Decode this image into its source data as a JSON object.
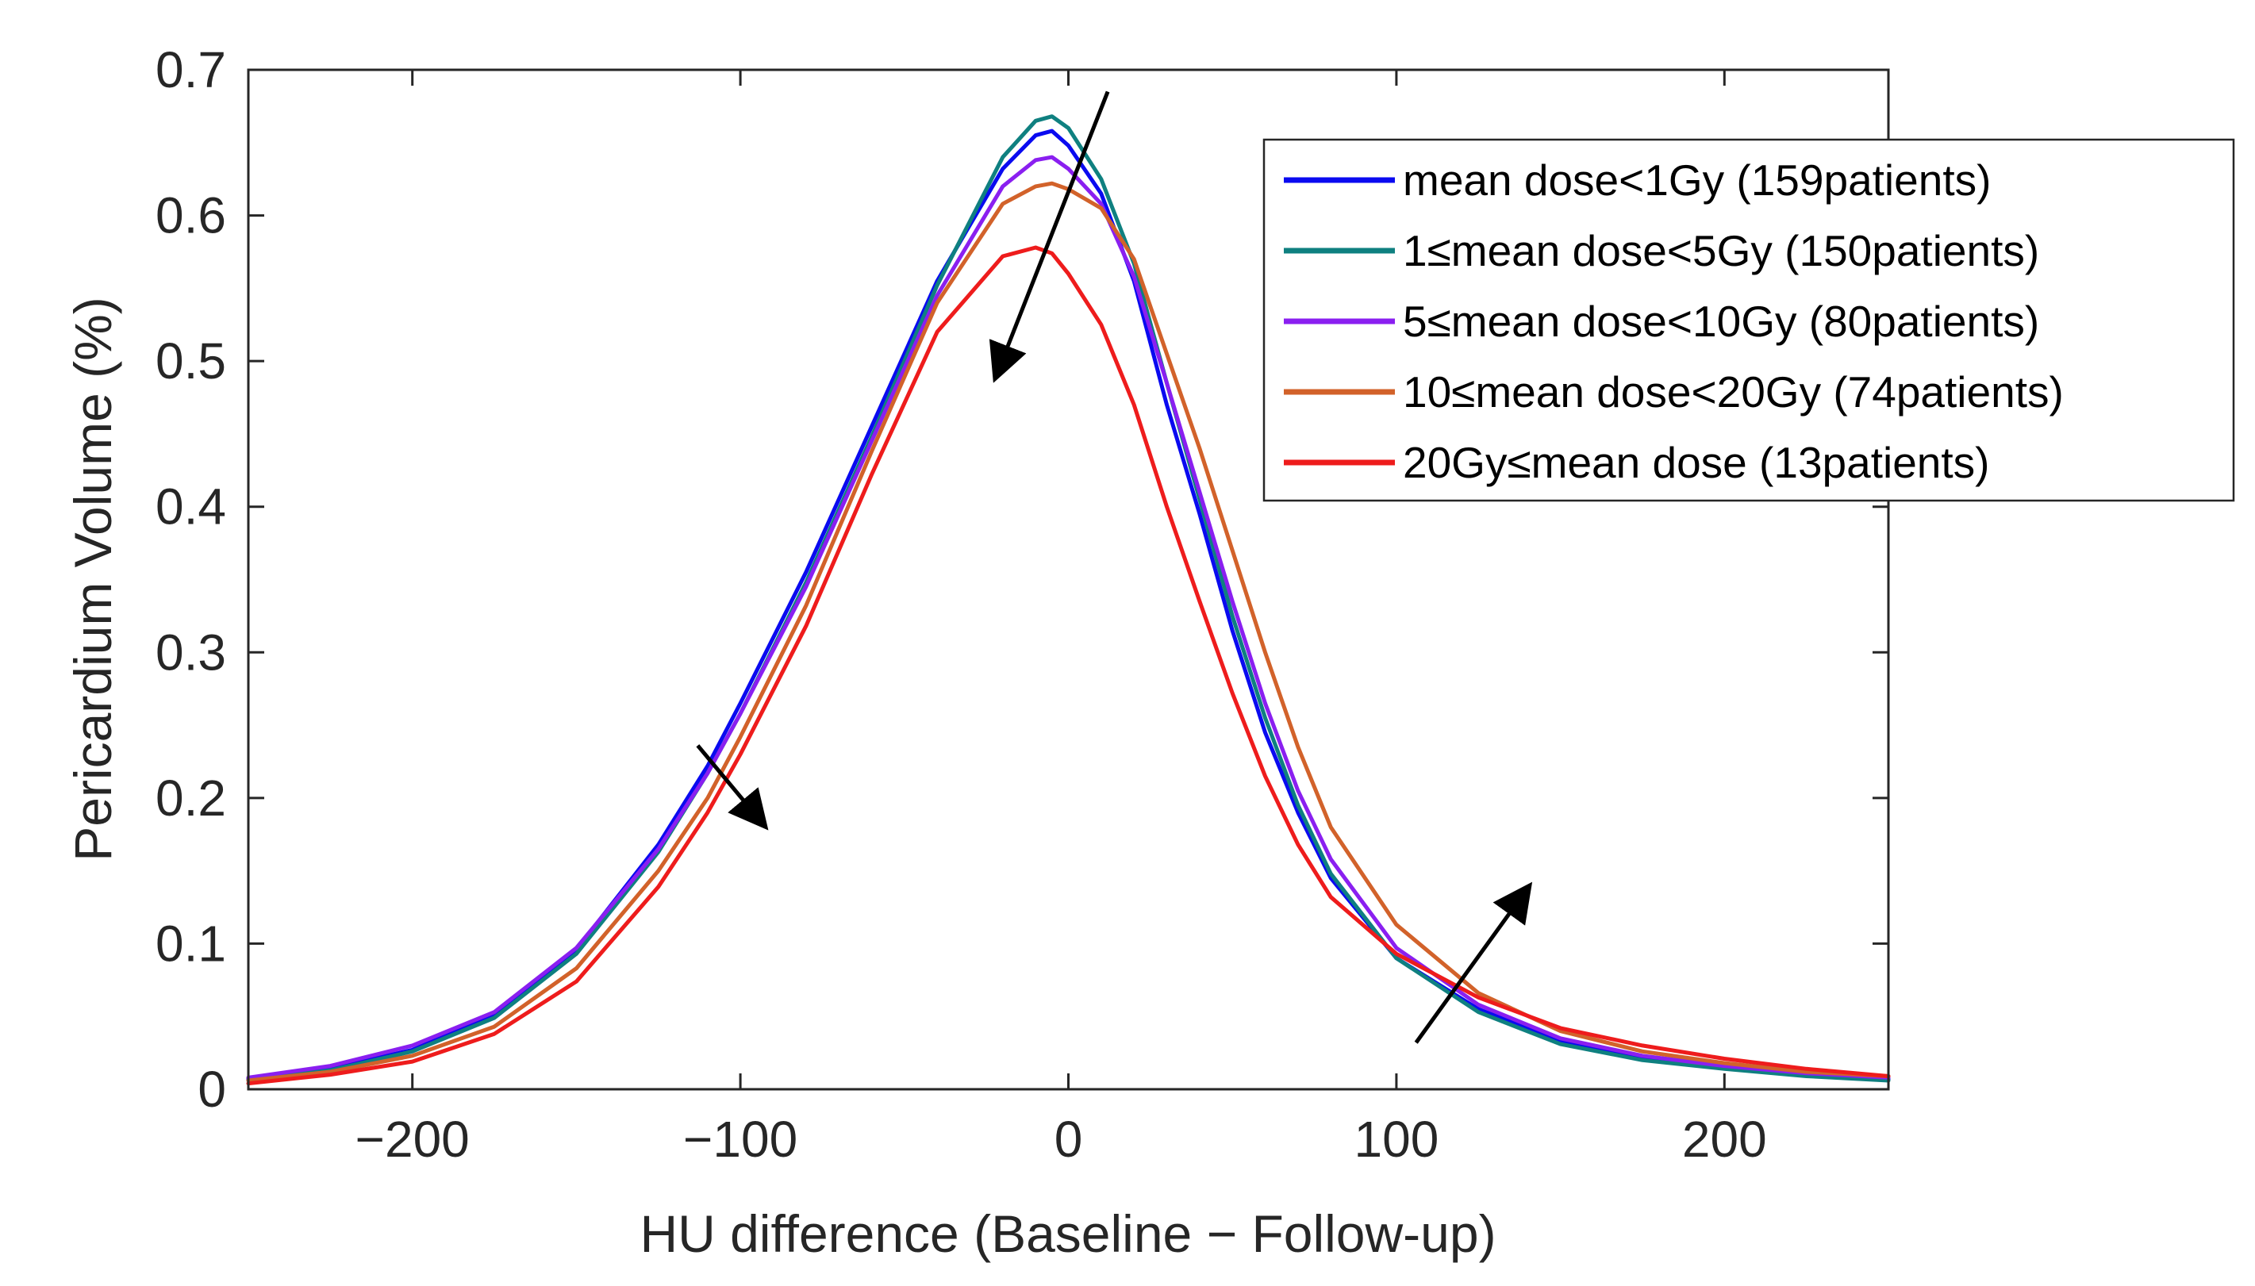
{
  "chart_data": {
    "type": "line",
    "xlabel": "HU difference (Baseline − Follow-up)",
    "ylabel": "Pericardium Volume (%)",
    "xlim": [
      -250,
      250
    ],
    "ylim": [
      0,
      0.7
    ],
    "xticks": [
      -200,
      -100,
      0,
      100,
      200
    ],
    "xtick_labels": [
      "−200",
      "−100",
      "0",
      "100",
      "200"
    ],
    "yticks": [
      0,
      0.1,
      0.2,
      0.3,
      0.4,
      0.5,
      0.6,
      0.7
    ],
    "ytick_labels": [
      "0",
      "0.1",
      "0.2",
      "0.3",
      "0.4",
      "0.5",
      "0.6",
      "0.7"
    ],
    "legend_position": "top-right",
    "grid": false,
    "series": [
      {
        "name": "mean dose<1Gy (159patients)",
        "color": "#0a0af0",
        "x": [
          -250,
          -225,
          -200,
          -175,
          -150,
          -125,
          -110,
          -100,
          -80,
          -60,
          -40,
          -20,
          -10,
          -5,
          0,
          10,
          20,
          30,
          40,
          50,
          60,
          70,
          80,
          100,
          125,
          150,
          175,
          200,
          225,
          250
        ],
        "y": [
          0.007,
          0.014,
          0.027,
          0.051,
          0.096,
          0.168,
          0.222,
          0.265,
          0.355,
          0.455,
          0.555,
          0.632,
          0.655,
          0.658,
          0.648,
          0.615,
          0.555,
          0.47,
          0.395,
          0.315,
          0.245,
          0.19,
          0.145,
          0.09,
          0.055,
          0.033,
          0.022,
          0.015,
          0.01,
          0.007
        ]
      },
      {
        "name": "1≤mean dose<5Gy (150patients)",
        "color": "#0f8080",
        "x": [
          -250,
          -225,
          -200,
          -175,
          -150,
          -125,
          -110,
          -100,
          -80,
          -60,
          -40,
          -20,
          -10,
          -5,
          0,
          10,
          20,
          30,
          40,
          50,
          60,
          70,
          80,
          100,
          125,
          150,
          175,
          200,
          225,
          250
        ],
        "y": [
          0.006,
          0.013,
          0.026,
          0.049,
          0.093,
          0.163,
          0.217,
          0.258,
          0.348,
          0.448,
          0.552,
          0.64,
          0.665,
          0.668,
          0.66,
          0.625,
          0.567,
          0.485,
          0.405,
          0.325,
          0.255,
          0.195,
          0.148,
          0.09,
          0.053,
          0.031,
          0.02,
          0.014,
          0.009,
          0.006
        ]
      },
      {
        "name": "5≤mean dose<10Gy (80patients)",
        "color": "#8a1ff0",
        "x": [
          -250,
          -225,
          -200,
          -175,
          -150,
          -125,
          -110,
          -100,
          -80,
          -60,
          -40,
          -20,
          -10,
          -5,
          0,
          10,
          20,
          30,
          40,
          50,
          60,
          70,
          80,
          100,
          125,
          150,
          175,
          200,
          225,
          250
        ],
        "y": [
          0.008,
          0.016,
          0.03,
          0.053,
          0.097,
          0.165,
          0.217,
          0.258,
          0.345,
          0.445,
          0.545,
          0.62,
          0.638,
          0.64,
          0.632,
          0.608,
          0.558,
          0.485,
          0.41,
          0.335,
          0.265,
          0.205,
          0.158,
          0.097,
          0.058,
          0.035,
          0.023,
          0.016,
          0.011,
          0.008
        ]
      },
      {
        "name": "10≤mean dose<20Gy (74patients)",
        "color": "#d2622a",
        "x": [
          -250,
          -225,
          -200,
          -175,
          -150,
          -125,
          -110,
          -100,
          -80,
          -60,
          -40,
          -20,
          -10,
          -5,
          0,
          10,
          20,
          30,
          40,
          50,
          60,
          70,
          80,
          100,
          125,
          150,
          175,
          200,
          225,
          250
        ],
        "y": [
          0.006,
          0.012,
          0.023,
          0.043,
          0.083,
          0.15,
          0.2,
          0.242,
          0.332,
          0.438,
          0.54,
          0.608,
          0.62,
          0.622,
          0.618,
          0.605,
          0.57,
          0.505,
          0.44,
          0.37,
          0.3,
          0.235,
          0.18,
          0.113,
          0.066,
          0.04,
          0.026,
          0.018,
          0.012,
          0.009
        ]
      },
      {
        "name": "20Gy≤mean dose (13patients)",
        "color": "#ee1c1c",
        "x": [
          -250,
          -225,
          -200,
          -175,
          -150,
          -125,
          -110,
          -100,
          -80,
          -60,
          -40,
          -20,
          -10,
          -5,
          0,
          10,
          20,
          30,
          40,
          50,
          60,
          70,
          80,
          100,
          125,
          150,
          175,
          200,
          225,
          250
        ],
        "y": [
          0.004,
          0.01,
          0.019,
          0.038,
          0.074,
          0.139,
          0.19,
          0.23,
          0.318,
          0.422,
          0.52,
          0.572,
          0.578,
          0.574,
          0.56,
          0.525,
          0.47,
          0.4,
          0.335,
          0.272,
          0.215,
          0.168,
          0.132,
          0.093,
          0.063,
          0.042,
          0.03,
          0.021,
          0.014,
          0.009
        ]
      }
    ],
    "arrows": [
      {
        "from": [
          12,
          0.685
        ],
        "to": [
          -22,
          0.49
        ]
      },
      {
        "from": [
          -113,
          0.236
        ],
        "to": [
          -93,
          0.182
        ]
      },
      {
        "from": [
          106,
          0.032
        ],
        "to": [
          140,
          0.138
        ]
      }
    ]
  }
}
